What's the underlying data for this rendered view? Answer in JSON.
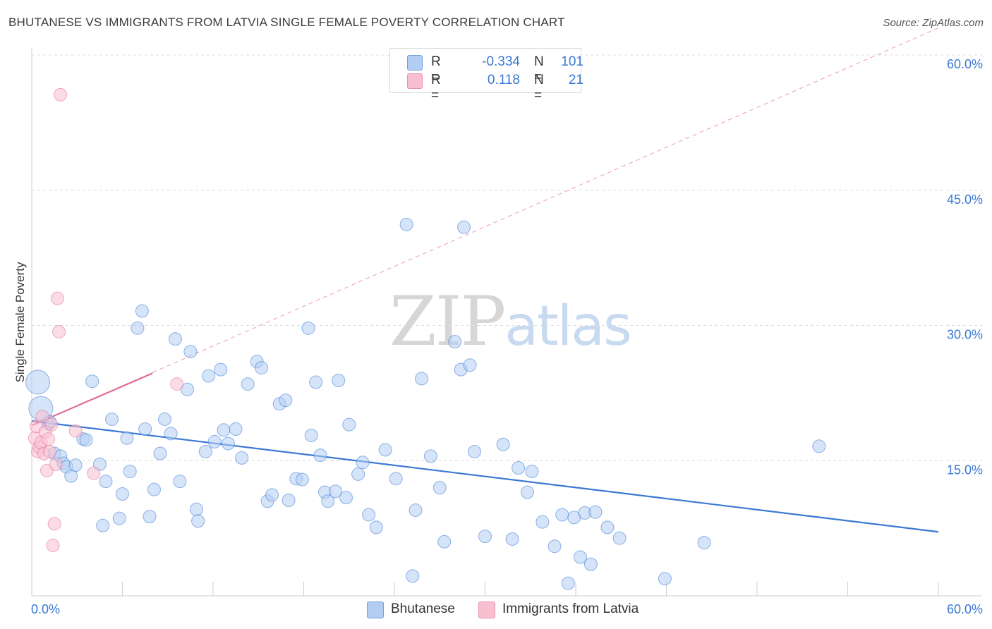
{
  "header": {
    "title": "BHUTANESE VS IMMIGRANTS FROM LATVIA SINGLE FEMALE POVERTY CORRELATION CHART",
    "source": "Source: ZipAtlas.com"
  },
  "watermark": {
    "zip": "ZIP",
    "atlas": "atlas"
  },
  "stats_legend": {
    "rows": [
      {
        "r_label": "R =",
        "r_value": "-0.334",
        "n_label": "N =",
        "n_value": "101",
        "color": "#b3cdf2"
      },
      {
        "r_label": "R =",
        "r_value": "0.118",
        "n_label": "N =",
        "n_value": "21",
        "color": "#f7bfd0"
      }
    ]
  },
  "chart_data": {
    "type": "scatter",
    "xlabel": "",
    "ylabel": "Single Female Poverty",
    "xlim": [
      0,
      60
    ],
    "ylim": [
      0,
      60
    ],
    "x_tick_labels": [
      "0.0%",
      "60.0%"
    ],
    "y_ticks": [
      15,
      30,
      45,
      60
    ],
    "y_tick_labels": [
      "15.0%",
      "30.0%",
      "45.0%",
      "60.0%"
    ],
    "grid": true,
    "legend_position": "bottom-center",
    "series": [
      {
        "name": "Bhutanese",
        "color": "#3a78d4",
        "fill": "#b3cdf2",
        "trend": {
          "x": [
            0,
            60
          ],
          "y": [
            19.4,
            7.1
          ]
        },
        "points": [
          [
            0.4,
            23.7
          ],
          [
            0.6,
            20.8
          ],
          [
            1.1,
            19.1
          ],
          [
            1.2,
            19.3
          ],
          [
            1.5,
            15.8
          ],
          [
            1.9,
            15.5
          ],
          [
            2.1,
            14.7
          ],
          [
            2.3,
            14.3
          ],
          [
            2.6,
            13.3
          ],
          [
            2.9,
            14.5
          ],
          [
            3.4,
            17.4
          ],
          [
            3.6,
            17.3
          ],
          [
            4.0,
            23.8
          ],
          [
            4.5,
            14.6
          ],
          [
            4.7,
            7.8
          ],
          [
            4.9,
            12.7
          ],
          [
            5.3,
            19.6
          ],
          [
            5.8,
            8.6
          ],
          [
            6.0,
            11.3
          ],
          [
            6.3,
            17.5
          ],
          [
            6.5,
            13.8
          ],
          [
            7.0,
            29.7
          ],
          [
            7.3,
            31.6
          ],
          [
            7.5,
            18.5
          ],
          [
            7.8,
            8.8
          ],
          [
            8.1,
            11.8
          ],
          [
            8.5,
            15.8
          ],
          [
            8.8,
            19.6
          ],
          [
            9.2,
            18.0
          ],
          [
            9.5,
            28.5
          ],
          [
            9.8,
            12.7
          ],
          [
            10.3,
            22.9
          ],
          [
            10.5,
            27.1
          ],
          [
            10.9,
            9.6
          ],
          [
            11.0,
            8.3
          ],
          [
            11.5,
            16.0
          ],
          [
            11.7,
            24.4
          ],
          [
            12.1,
            17.1
          ],
          [
            12.5,
            25.1
          ],
          [
            12.7,
            18.4
          ],
          [
            13.0,
            16.9
          ],
          [
            13.5,
            18.5
          ],
          [
            13.9,
            15.3
          ],
          [
            14.3,
            23.5
          ],
          [
            14.9,
            26.0
          ],
          [
            15.2,
            25.3
          ],
          [
            15.6,
            10.5
          ],
          [
            15.9,
            11.2
          ],
          [
            16.4,
            21.3
          ],
          [
            16.8,
            21.7
          ],
          [
            17.0,
            10.6
          ],
          [
            17.5,
            13.0
          ],
          [
            17.9,
            12.9
          ],
          [
            18.3,
            29.7
          ],
          [
            18.5,
            17.8
          ],
          [
            18.8,
            23.7
          ],
          [
            19.1,
            15.6
          ],
          [
            19.4,
            11.5
          ],
          [
            19.6,
            10.5
          ],
          [
            20.1,
            11.6
          ],
          [
            20.3,
            23.9
          ],
          [
            20.8,
            10.9
          ],
          [
            21.0,
            19.0
          ],
          [
            21.6,
            13.5
          ],
          [
            21.9,
            14.8
          ],
          [
            22.3,
            9.0
          ],
          [
            22.8,
            7.6
          ],
          [
            23.4,
            16.2
          ],
          [
            24.1,
            13.0
          ],
          [
            24.8,
            41.2
          ],
          [
            25.2,
            2.2
          ],
          [
            25.4,
            9.5
          ],
          [
            25.8,
            24.1
          ],
          [
            26.4,
            15.5
          ],
          [
            27.0,
            12.0
          ],
          [
            27.3,
            6.0
          ],
          [
            28.0,
            28.2
          ],
          [
            28.4,
            25.1
          ],
          [
            28.6,
            40.9
          ],
          [
            29.0,
            25.6
          ],
          [
            29.3,
            16.0
          ],
          [
            30.0,
            6.6
          ],
          [
            31.2,
            16.8
          ],
          [
            31.8,
            6.3
          ],
          [
            32.2,
            14.2
          ],
          [
            32.8,
            11.5
          ],
          [
            33.1,
            13.8
          ],
          [
            33.8,
            8.2
          ],
          [
            34.6,
            5.5
          ],
          [
            35.1,
            9.0
          ],
          [
            35.5,
            1.4
          ],
          [
            35.9,
            8.7
          ],
          [
            36.3,
            4.3
          ],
          [
            36.6,
            9.2
          ],
          [
            37.0,
            3.5
          ],
          [
            37.3,
            9.3
          ],
          [
            38.1,
            7.6
          ],
          [
            38.9,
            6.4
          ],
          [
            41.9,
            1.9
          ],
          [
            44.5,
            5.9
          ],
          [
            52.1,
            16.6
          ]
        ],
        "sizes": {
          "0": "large",
          "1": "large"
        }
      },
      {
        "name": "Immigrants from Latvia",
        "color": "#e46d97",
        "fill": "#f7bfd0",
        "trend": {
          "x": [
            0,
            8
          ],
          "y": [
            18.9,
            24.7
          ]
        },
        "trend_extended": {
          "x": [
            0,
            60
          ],
          "y": [
            18.9,
            63.0
          ]
        },
        "points": [
          [
            0.2,
            17.5
          ],
          [
            0.3,
            18.8
          ],
          [
            0.4,
            16.0
          ],
          [
            0.5,
            16.5
          ],
          [
            0.6,
            17.0
          ],
          [
            0.7,
            19.9
          ],
          [
            0.8,
            15.8
          ],
          [
            0.9,
            18.2
          ],
          [
            1.0,
            13.9
          ],
          [
            1.1,
            17.4
          ],
          [
            1.2,
            16.0
          ],
          [
            1.3,
            19.0
          ],
          [
            1.4,
            5.6
          ],
          [
            1.5,
            8.0
          ],
          [
            1.6,
            14.6
          ],
          [
            1.7,
            33.0
          ],
          [
            1.8,
            29.3
          ],
          [
            1.9,
            55.6
          ],
          [
            2.9,
            18.3
          ],
          [
            4.1,
            13.6
          ],
          [
            9.6,
            23.5
          ]
        ]
      }
    ]
  },
  "bottom_legend": {
    "items": [
      {
        "label": "Bhutanese",
        "color": "#b3cdf2"
      },
      {
        "label": "Immigrants from Latvia",
        "color": "#f7bfd0"
      }
    ]
  }
}
